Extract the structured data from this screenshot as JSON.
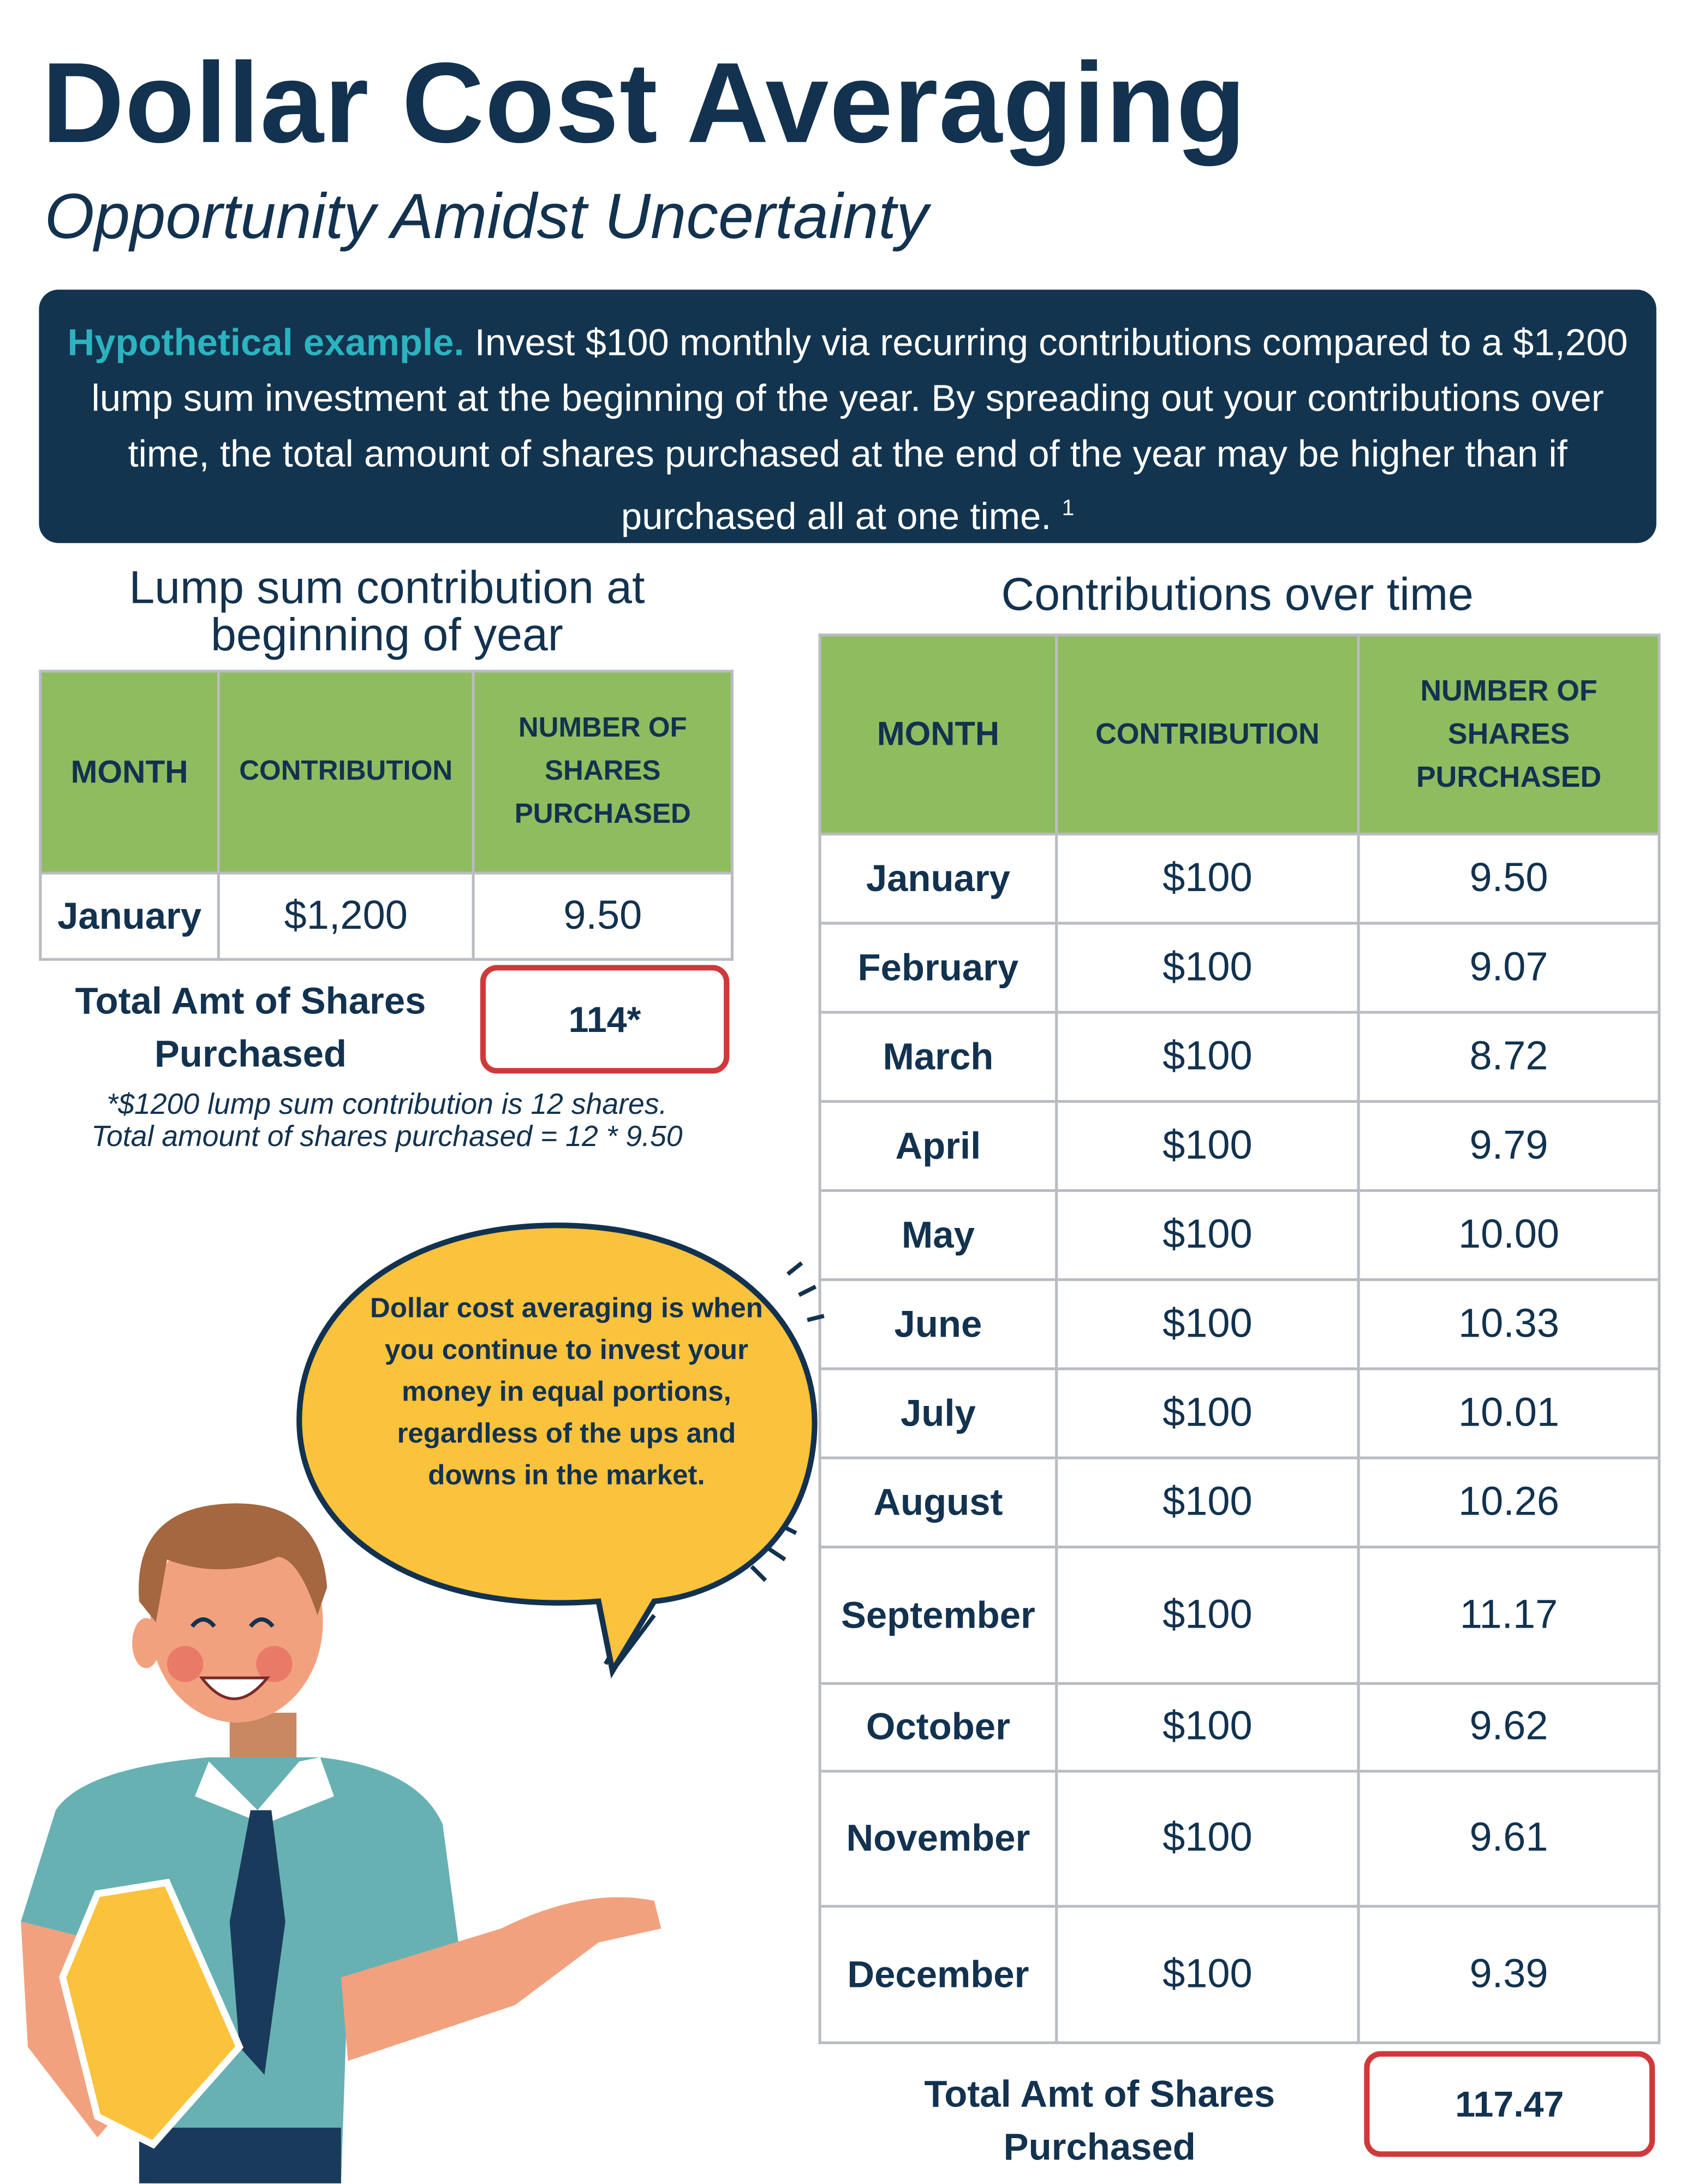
{
  "header": {
    "title": "Dollar Cost Averaging",
    "subtitle": "Opportunity Amidst Uncertainty"
  },
  "intro": {
    "lead": "Hypothetical example.",
    "text": "Invest $100 monthly via recurring contributions compared to a $1,200 lump sum investment at the beginning of the year. By spreading out your contributions over time, the total amount of shares purchased at the end of the year may be higher than if purchased all at one time.",
    "footnote_marker": "1"
  },
  "lump_sum": {
    "heading": "Lump sum contribution at beginning of year",
    "columns": [
      "MONTH",
      "CONTRIBUTION",
      "NUMBER OF SHARES PURCHASED"
    ],
    "rows": [
      [
        "January",
        "$1,200",
        "9.50"
      ]
    ],
    "total_label": "Total Amt of Shares Purchased",
    "total": "114*",
    "notes": [
      "*$1200 lump sum contribution is 12 shares.",
      "Total amount of shares purchased = 12 * 9.50"
    ]
  },
  "over_time": {
    "heading": "Contributions over time",
    "columns": [
      "MONTH",
      "CONTRIBUTION",
      "NUMBER OF SHARES PURCHASED"
    ],
    "rows": [
      [
        "January",
        "$100",
        "9.50"
      ],
      [
        "February",
        "$100",
        "9.07"
      ],
      [
        "March",
        "$100",
        "8.72"
      ],
      [
        "April",
        "$100",
        "9.79"
      ],
      [
        "May",
        "$100",
        "10.00"
      ],
      [
        "June",
        "$100",
        "10.33"
      ],
      [
        "July",
        "$100",
        "10.01"
      ],
      [
        "August",
        "$100",
        "10.26"
      ],
      [
        "September",
        "$100",
        "11.17"
      ],
      [
        "October",
        "$100",
        "9.62"
      ],
      [
        "November",
        "$100",
        "9.61"
      ],
      [
        "December",
        "$100",
        "9.39"
      ]
    ],
    "total_label": "Total Amt of Shares Purchased",
    "total": "117.47"
  },
  "speech_bubble": "Dollar cost averaging is when you continue to invest your money in equal portions, regardless of the ups and downs in the market."
}
